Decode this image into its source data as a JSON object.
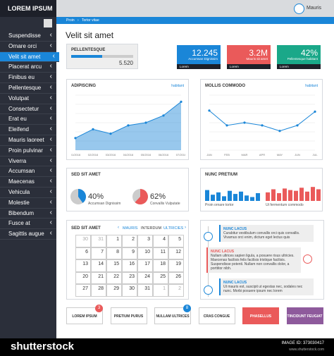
{
  "header": {
    "brand": "LOREM IPSUM",
    "user": "Mauris"
  },
  "breadcrumb": [
    "Proin",
    "Tortor vitae"
  ],
  "page_title": "Velit sit amet",
  "sidebar": {
    "items": [
      "Suspendisse",
      "Ornare orci",
      "Velit sit amet",
      "Placerat arcu",
      "Finibus eu",
      "Pellentesque",
      "Volutpat",
      "Consectetur",
      "Erat eu",
      "Eleifend",
      "Mauris laoreet",
      "Proin pulvinar",
      "Viverra",
      "Accumsan",
      "Maecenas",
      "Vehicula",
      "Molestie",
      "Bibendum",
      "Fusce at",
      "Sagittis augue"
    ],
    "active": 2
  },
  "progress": {
    "title": "PELLENTESQUE",
    "value": "5.520"
  },
  "tiles": [
    {
      "value": "12.245",
      "label": "Accumsan Dignissim",
      "link": "Lorem",
      "color": "#1a86d8"
    },
    {
      "value": "3.2M",
      "label": "Mauris sit amet",
      "link": "Lorem",
      "color": "#ea5a5a"
    },
    {
      "value": "42%",
      "label": "Pellentesque habitant",
      "link": "Lorem",
      "color": "#1aa889"
    }
  ],
  "area_chart": {
    "type": "area",
    "title": "ADIPISCING",
    "tag": "habitant",
    "categories": [
      "01/2016",
      "02/2016",
      "03/2016",
      "04/2016",
      "05/2016",
      "06/2016",
      "07/2016"
    ],
    "values": [
      22,
      38,
      30,
      45,
      50,
      63,
      88
    ],
    "ylim": [
      0,
      100
    ],
    "color": "#1a86d8"
  },
  "line_chart": {
    "type": "line",
    "title": "MOLLIS COMMODO",
    "tag": "habitant",
    "categories": [
      "JAN",
      "FEB",
      "MAR",
      "APR",
      "MAY",
      "JUN",
      "JUL"
    ],
    "values": [
      72,
      45,
      50,
      45,
      35,
      45,
      70
    ],
    "ylim": [
      0,
      100
    ],
    "color": "#1a86d8"
  },
  "pies": {
    "title": "SED SIT AMET",
    "items": [
      {
        "value": 40,
        "value_label": "40%",
        "label": "Accumsan Dignissim",
        "color": "#1a86d8"
      },
      {
        "value": 62,
        "value_label": "62%",
        "label": "Convallis Vulputate",
        "color": "#ea5a5a"
      }
    ]
  },
  "bars": {
    "title": "NUNC PRETIUM",
    "groups": [
      {
        "label": "Proin ornare tortor",
        "color": "#1a86d8",
        "values": [
          70,
          40,
          55,
          30,
          65,
          45,
          60,
          35,
          25,
          50
        ],
        "ylim": [
          0,
          100
        ]
      },
      {
        "label": "Ut fermentum commodo",
        "color": "#ea5a5a",
        "values": [
          55,
          75,
          50,
          80,
          70,
          65,
          85,
          60,
          90,
          75
        ],
        "ylim": [
          0,
          100
        ]
      }
    ]
  },
  "calendar": {
    "title": "SED SIT AMET",
    "months": [
      "MAURIS",
      "INTERDUM",
      "ULTRICIES"
    ],
    "weeks": [
      [
        "30",
        "31",
        "1",
        "2",
        "3",
        "4",
        "5"
      ],
      [
        "6",
        "7",
        "8",
        "9",
        "10",
        "11",
        "12"
      ],
      [
        "13",
        "14",
        "15",
        "16",
        "17",
        "18",
        "19"
      ],
      [
        "20",
        "21",
        "22",
        "23",
        "24",
        "25",
        "26"
      ],
      [
        "27",
        "28",
        "29",
        "30",
        "31",
        "1",
        "2"
      ]
    ]
  },
  "timeline": [
    {
      "title": "NUNC LACUS",
      "text": "Curabitur vestibulum convallis orci quis convallis. Vivamus orci enim, dictum eget lectus quis",
      "color": "#1a86d8"
    },
    {
      "title": "NUNC LACUS",
      "text": "Nullam ultrices sapien ligula, a posuere risus ultricies. Maecenas facilisis felis facilisis tristique facilisis. Suspendisse potenti. Nullam non convallis dolor, a porttitor nibh.",
      "color": "#ea5a5a"
    },
    {
      "title": "NUNC LACUS",
      "text": "Ut mauris est, suscipit ut egestas nec, sodales nec nunc. Morbi posuere ipsum nec lorem",
      "color": "#1a86d8"
    }
  ],
  "buttons": [
    {
      "label": "LOREM IPSUM",
      "badge": "3"
    },
    {
      "label": "PRETIUM PURUS"
    },
    {
      "label": "NULLAM ULTRICES",
      "badge": "8"
    },
    {
      "label": "CRAS CONGUE"
    },
    {
      "label": "PHASELLUS",
      "fill": "#ea5a5a"
    },
    {
      "label": "TINCIDUNT FEUGIAT",
      "fill": "#8e5a9c"
    }
  ],
  "footer": {
    "brand": "shutterstock",
    "id": "IMAGE ID: 373030417",
    "site": "www.shutterstock.com"
  }
}
